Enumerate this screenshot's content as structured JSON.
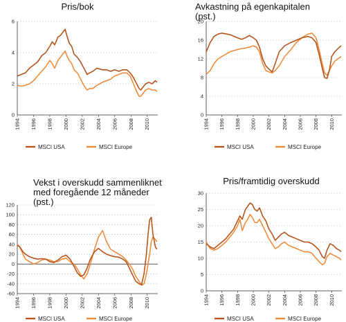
{
  "figure": {
    "colors": {
      "usa": "#b5541c",
      "europe": "#ee8c3c",
      "grid": "#bdbdbd"
    }
  },
  "chart_data": [
    {
      "type": "line",
      "title": "Pris/bok",
      "title_lines": [
        "Pris/bok"
      ],
      "ylim": [
        0,
        6
      ],
      "yticks": [
        0,
        2,
        4,
        6
      ],
      "xlim": [
        1994,
        2011.3
      ],
      "xticks": [
        "1994",
        "1996",
        "1998",
        "2000",
        "2002",
        "2004",
        "2006",
        "2008",
        "2010"
      ],
      "grid": true,
      "series": [
        {
          "name": "MSCI USA",
          "color": "#b5541c",
          "x": [
            1994,
            1994.5,
            1995,
            1995.5,
            1996,
            1996.5,
            1997,
            1997.5,
            1998,
            1998.3,
            1998.6,
            1999,
            1999.3,
            1999.6,
            1999.9,
            2000.1,
            2000.4,
            2000.7,
            2001,
            2001.4,
            2001.8,
            2002.2,
            2002.6,
            2002.9,
            2003.3,
            2003.8,
            2004.5,
            2005,
            2005.5,
            2006,
            2006.5,
            2007,
            2007.5,
            2007.9,
            2008.3,
            2008.7,
            2009,
            2009.2,
            2009.5,
            2009.8,
            2010.2,
            2010.6,
            2011,
            2011.2
          ],
          "values": [
            2.5,
            2.6,
            2.7,
            3.0,
            3.2,
            3.4,
            3.8,
            4.0,
            4.4,
            4.7,
            4.5,
            5.0,
            5.1,
            5.3,
            5.5,
            5.1,
            4.6,
            4.4,
            3.9,
            3.7,
            3.4,
            3.0,
            2.6,
            2.7,
            2.8,
            3.0,
            2.9,
            2.9,
            2.8,
            2.9,
            2.8,
            2.9,
            2.9,
            2.7,
            2.4,
            2.0,
            1.7,
            1.6,
            1.8,
            2.0,
            2.1,
            2.0,
            2.2,
            2.1
          ]
        },
        {
          "name": "MSCI Europe",
          "color": "#ee8c3c",
          "x": [
            1994,
            1994.5,
            1995,
            1995.5,
            1996,
            1996.5,
            1997,
            1997.5,
            1998,
            1998.3,
            1998.6,
            1999,
            1999.3,
            1999.6,
            1999.9,
            2000.1,
            2000.4,
            2000.7,
            2001,
            2001.4,
            2001.8,
            2002.2,
            2002.6,
            2002.9,
            2003.3,
            2003.8,
            2004.5,
            2005,
            2005.5,
            2006,
            2006.5,
            2007,
            2007.5,
            2007.9,
            2008.3,
            2008.7,
            2009,
            2009.2,
            2009.5,
            2009.8,
            2010.2,
            2010.6,
            2011,
            2011.2
          ],
          "values": [
            1.9,
            1.85,
            1.9,
            2.0,
            2.2,
            2.5,
            2.8,
            3.1,
            3.5,
            3.3,
            3.0,
            3.5,
            3.7,
            3.9,
            4.1,
            3.8,
            3.5,
            3.3,
            2.9,
            2.7,
            2.3,
            1.9,
            1.6,
            1.7,
            1.7,
            1.9,
            2.1,
            2.2,
            2.3,
            2.5,
            2.6,
            2.7,
            2.7,
            2.5,
            2.0,
            1.5,
            1.2,
            1.2,
            1.4,
            1.6,
            1.7,
            1.6,
            1.6,
            1.5
          ]
        }
      ]
    },
    {
      "type": "line",
      "title": "Avkastning på egenkapitalen (pst.)",
      "title_lines": [
        "Avkastning på egenkapitalen",
        "(pst.)"
      ],
      "ylim": [
        0,
        20
      ],
      "yticks": [
        0,
        4,
        8,
        12,
        16,
        20
      ],
      "xlim": [
        1994,
        2011.3
      ],
      "xticks": [
        "1994",
        "1996",
        "1998",
        "2000",
        "2002",
        "2004",
        "2006",
        "2008",
        "2010"
      ],
      "grid": true,
      "series": [
        {
          "name": "MSCI USA",
          "color": "#b5541c",
          "x": [
            1994,
            1994.5,
            1995,
            1995.5,
            1996,
            1997,
            1998,
            1998.5,
            1999,
            1999.5,
            2000,
            2000.4,
            2000.8,
            2001.2,
            2001.6,
            2002,
            2002.4,
            2002.8,
            2003.3,
            2004,
            2004.8,
            2005.5,
            2006.2,
            2007,
            2007.5,
            2008,
            2008.4,
            2008.8,
            2009.1,
            2009.4,
            2009.7,
            2010,
            2010.4,
            2010.8,
            2011.2
          ],
          "values": [
            13.5,
            15.5,
            16.8,
            17.3,
            17.5,
            17.2,
            16.5,
            16.2,
            16.5,
            17.0,
            16.5,
            16.0,
            14.5,
            12.0,
            10.5,
            9.8,
            9.2,
            11.0,
            13.5,
            14.8,
            15.5,
            16.0,
            16.5,
            16.8,
            16.5,
            15.5,
            13.0,
            10.0,
            8.0,
            7.8,
            9.5,
            12.5,
            13.5,
            14.2,
            14.8
          ]
        },
        {
          "name": "MSCI Europe",
          "color": "#ee8c3c",
          "x": [
            1994,
            1994.5,
            1995,
            1995.5,
            1996,
            1997,
            1998,
            1998.5,
            1999,
            1999.5,
            2000,
            2000.4,
            2000.8,
            2001.2,
            2001.6,
            2002,
            2002.4,
            2002.8,
            2003.3,
            2004,
            2004.8,
            2005.5,
            2006.2,
            2007,
            2007.5,
            2008,
            2008.4,
            2008.8,
            2009.1,
            2009.4,
            2009.7,
            2010,
            2010.4,
            2010.8,
            2011.2
          ],
          "values": [
            8.7,
            9.5,
            11.0,
            12.0,
            12.5,
            13.5,
            14.0,
            14.2,
            14.3,
            14.5,
            14.8,
            14.5,
            13.5,
            11.0,
            9.5,
            9.2,
            9.0,
            9.5,
            10.5,
            12.5,
            14.0,
            15.5,
            16.5,
            17.3,
            17.5,
            16.5,
            14.0,
            11.0,
            9.0,
            8.5,
            9.5,
            10.5,
            11.5,
            12.0,
            12.5
          ]
        }
      ]
    },
    {
      "type": "line",
      "title": "Vekst i overskudd sammenliknet med foregående 12 måneder (pst.)",
      "title_lines": [
        "Vekst i overskudd sammenliknet",
        "med foregående 12 måneder",
        "(pst.)"
      ],
      "ylim": [
        -60,
        120
      ],
      "yticks": [
        -60,
        -40,
        -20,
        0,
        20,
        40,
        60,
        80,
        100,
        120
      ],
      "xlim": [
        1994,
        2011.3
      ],
      "xticks": [
        "1994",
        "1996",
        "1998",
        "2000",
        "2002",
        "2004",
        "2006",
        "2008",
        "2010"
      ],
      "grid": true,
      "series": [
        {
          "name": "MSCI USA",
          "color": "#b5541c",
          "x": [
            1994,
            1994.3,
            1994.7,
            1995,
            1995.5,
            1996,
            1996.5,
            1997,
            1997.5,
            1998,
            1998.5,
            1999,
            1999.5,
            2000,
            2000.5,
            2001,
            2001.4,
            2001.8,
            2002.2,
            2002.6,
            2003,
            2003.5,
            2004,
            2004.5,
            2005,
            2005.5,
            2006,
            2006.5,
            2007,
            2007.4,
            2007.8,
            2008.2,
            2008.6,
            2009,
            2009.3,
            2009.6,
            2009.9,
            2010.1,
            2010.3,
            2010.5,
            2010.7,
            2011,
            2011.2
          ],
          "values": [
            38,
            35,
            25,
            20,
            15,
            12,
            10,
            11,
            10,
            5,
            3,
            8,
            15,
            18,
            10,
            -5,
            -18,
            -25,
            -22,
            -8,
            10,
            25,
            32,
            25,
            20,
            17,
            15,
            14,
            10,
            5,
            -8,
            -22,
            -35,
            -40,
            -42,
            -20,
            20,
            60,
            90,
            95,
            60,
            35,
            30
          ]
        },
        {
          "name": "MSCI Europe",
          "color": "#ee8c3c",
          "x": [
            1994,
            1994.3,
            1994.7,
            1995,
            1995.5,
            1996,
            1996.5,
            1997,
            1997.5,
            1998,
            1998.5,
            1999,
            1999.5,
            2000,
            2000.5,
            2001,
            2001.4,
            2001.8,
            2002.2,
            2002.6,
            2003,
            2003.5,
            2004,
            2004.5,
            2005,
            2005.5,
            2006,
            2006.5,
            2007,
            2007.4,
            2007.8,
            2008.2,
            2008.6,
            2009,
            2009.3,
            2009.6,
            2009.9,
            2010.1,
            2010.3,
            2010.5,
            2010.7,
            2011,
            2011.2
          ],
          "values": [
            40,
            35,
            20,
            10,
            5,
            0,
            3,
            8,
            10,
            8,
            5,
            5,
            10,
            12,
            5,
            0,
            -10,
            -22,
            -30,
            -20,
            0,
            30,
            55,
            68,
            45,
            30,
            25,
            20,
            15,
            8,
            0,
            -10,
            -25,
            -35,
            -43,
            -40,
            -20,
            0,
            20,
            45,
            55,
            50,
            45
          ]
        }
      ]
    },
    {
      "type": "line",
      "title": "Pris/framtidig overskudd",
      "title_lines": [
        "Pris/framtidig overskudd"
      ],
      "ylim": [
        0,
        30
      ],
      "yticks": [
        0,
        5,
        10,
        15,
        20,
        25,
        30
      ],
      "xlim": [
        1994,
        2011.3
      ],
      "xticks": [
        "1994",
        "1996",
        "1998",
        "2000",
        "2002",
        "2004",
        "2006",
        "2008",
        "2010"
      ],
      "grid": true,
      "series": [
        {
          "name": "MSCI USA",
          "color": "#b5541c",
          "x": [
            1994,
            1994.5,
            1995,
            1995.5,
            1996,
            1996.5,
            1997,
            1997.5,
            1998,
            1998.3,
            1998.6,
            1999,
            1999.3,
            1999.6,
            1999.9,
            2000.2,
            2000.5,
            2000.8,
            2001.2,
            2001.6,
            2002,
            2002.4,
            2002.8,
            2003.2,
            2003.6,
            2004,
            2004.5,
            2005,
            2005.5,
            2006,
            2006.5,
            2007,
            2007.5,
            2008,
            2008.4,
            2008.8,
            2009.1,
            2009.4,
            2009.8,
            2010.2,
            2010.6,
            2011,
            2011.2
          ],
          "values": [
            14.5,
            13.5,
            13.0,
            14.0,
            15.0,
            16.0,
            17.5,
            19.0,
            21.5,
            23.0,
            22.0,
            25.0,
            26.0,
            27.0,
            26.5,
            25.0,
            24.5,
            25.5,
            23.0,
            21.5,
            19.0,
            17.5,
            15.5,
            16.5,
            17.5,
            18.0,
            17.0,
            16.5,
            16.0,
            15.5,
            15.0,
            15.0,
            14.5,
            13.5,
            12.5,
            10.5,
            10.0,
            12.5,
            14.5,
            14.0,
            13.0,
            12.5,
            12.0
          ]
        },
        {
          "name": "MSCI Europe",
          "color": "#ee8c3c",
          "x": [
            1994,
            1994.5,
            1995,
            1995.5,
            1996,
            1996.5,
            1997,
            1997.5,
            1998,
            1998.3,
            1998.6,
            1999,
            1999.3,
            1999.6,
            1999.9,
            2000.2,
            2000.5,
            2000.8,
            2001.2,
            2001.6,
            2002,
            2002.4,
            2002.8,
            2003.2,
            2003.6,
            2004,
            2004.5,
            2005,
            2005.5,
            2006,
            2006.5,
            2007,
            2007.5,
            2008,
            2008.4,
            2008.8,
            2009.1,
            2009.4,
            2009.8,
            2010.2,
            2010.6,
            2011,
            2011.2
          ],
          "values": [
            15.0,
            13.0,
            12.5,
            13.0,
            14.0,
            15.0,
            16.5,
            18.0,
            20.0,
            22.0,
            18.5,
            21.0,
            22.0,
            23.5,
            22.5,
            21.0,
            21.0,
            22.0,
            20.0,
            18.0,
            16.0,
            14.5,
            13.0,
            13.5,
            14.5,
            15.0,
            14.0,
            13.5,
            13.0,
            12.5,
            12.0,
            12.0,
            11.5,
            10.0,
            9.0,
            8.0,
            8.5,
            10.5,
            11.5,
            11.0,
            10.5,
            10.0,
            9.5
          ]
        }
      ]
    }
  ]
}
